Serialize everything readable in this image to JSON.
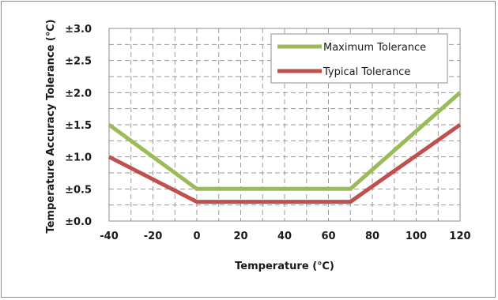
{
  "chart_data": {
    "type": "line",
    "xlabel": "Temperature (℃)",
    "ylabel": "Temperature Accuracy Tolerance (℃)",
    "xlim": [
      -40,
      120
    ],
    "ylim": [
      0,
      3
    ],
    "x_ticks": [
      -40,
      -20,
      0,
      20,
      40,
      60,
      80,
      100,
      120
    ],
    "x_tick_labels": [
      "-40",
      "-20",
      "0",
      "20",
      "40",
      "60",
      "80",
      "100",
      "120"
    ],
    "y_ticks": [
      0,
      0.5,
      1,
      1.5,
      2,
      2.5,
      3
    ],
    "y_tick_labels": [
      "±0.0",
      "±0.5",
      "±1.0",
      "±1.5",
      "±2.0",
      "±2.5",
      "±3.0"
    ],
    "grid": "dashed, major and minor",
    "legend_position": "top-right",
    "series": [
      {
        "name": "Maximum Tolerance",
        "color": "#9bbb59",
        "points": [
          [
            -40,
            1.5
          ],
          [
            0,
            0.5
          ],
          [
            70,
            0.5
          ],
          [
            120,
            2.0
          ]
        ]
      },
      {
        "name": "Typical Tolerance",
        "color": "#c0504d",
        "points": [
          [
            -40,
            1.0
          ],
          [
            0,
            0.3
          ],
          [
            70,
            0.3
          ],
          [
            120,
            1.5
          ]
        ]
      }
    ]
  }
}
